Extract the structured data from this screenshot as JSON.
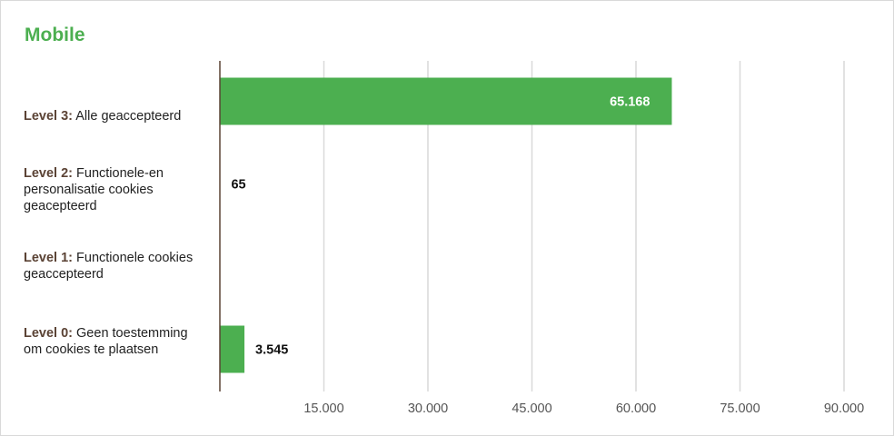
{
  "chart_data": {
    "type": "bar",
    "orientation": "horizontal",
    "title": "Mobile",
    "categories": [
      {
        "level": "Level 3:",
        "text": "Alle geaccepteerd"
      },
      {
        "level": "Level 2:",
        "text": "Functionele-en personalisatie cookies geacepteerd"
      },
      {
        "level": "Level 1:",
        "text": "Functionele cookies geaccepteerd"
      },
      {
        "level": "Level 0:",
        "text": "Geen toestemming om cookies te plaatsen"
      }
    ],
    "values": [
      65168,
      65,
      null,
      3545
    ],
    "value_labels": [
      "65.168",
      "65",
      "",
      "3.545"
    ],
    "xlim": [
      0,
      90000
    ],
    "xticks": [
      15000,
      30000,
      45000,
      60000,
      75000,
      90000
    ],
    "xtick_labels": [
      "15.000",
      "30.000",
      "45.000",
      "60.000",
      "75.000",
      "90.000"
    ],
    "grid": true,
    "colors": {
      "bar": "#4caf50",
      "title": "#4caf50",
      "level_label": "#5b4335",
      "grid": "#d9d9d9",
      "axis": "#5b4335"
    }
  }
}
